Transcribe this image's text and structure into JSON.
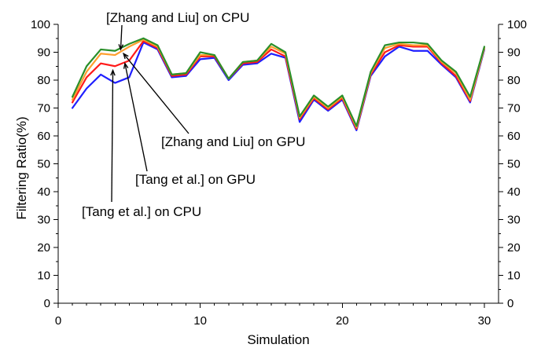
{
  "chart_data": {
    "type": "line",
    "xlabel": "Simulation",
    "ylabel": "Filtering Ratio(%)",
    "right_ylabel": "",
    "xlim": [
      0,
      31
    ],
    "ylim": [
      0,
      100
    ],
    "xticks": [
      0,
      10,
      20,
      30
    ],
    "yticks": [
      0,
      10,
      20,
      30,
      40,
      50,
      60,
      70,
      80,
      90,
      100
    ],
    "grid": false,
    "legend": "none",
    "x": [
      1,
      2,
      3,
      4,
      5,
      6,
      7,
      8,
      9,
      10,
      11,
      12,
      13,
      14,
      15,
      16,
      17,
      18,
      19,
      20,
      21,
      22,
      23,
      24,
      25,
      26,
      27,
      28,
      29,
      30
    ],
    "series": [
      {
        "name": "",
        "color": "#1f1fff",
        "values": [
          70,
          77,
          82,
          79,
          81,
          93.5,
          91,
          81,
          81.5,
          87.5,
          88,
          80,
          85.5,
          86,
          89.5,
          88,
          65,
          73,
          69,
          73,
          62,
          81.5,
          88.5,
          92,
          90.5,
          90.5,
          85.5,
          81,
          72,
          91
        ]
      },
      {
        "name": "",
        "color": "#ff1a1a",
        "values": [
          72,
          81,
          86,
          85,
          87,
          94,
          91.5,
          81.5,
          82,
          88.5,
          88.5,
          80.5,
          86,
          86.5,
          91,
          88.5,
          66,
          73.5,
          69.5,
          73.5,
          62.5,
          82,
          90,
          92.5,
          92,
          92,
          86,
          81.5,
          72.5,
          91.5
        ]
      },
      {
        "name": "",
        "color": "#ff9f2f",
        "values": [
          73,
          83,
          89.5,
          89,
          92,
          94.5,
          92,
          82,
          82.5,
          89,
          89,
          80.5,
          86.5,
          87,
          92,
          89.5,
          66.5,
          74,
          70,
          74,
          63,
          82.5,
          91.5,
          93,
          92.5,
          92.5,
          86.5,
          82.5,
          73,
          91.5
        ]
      },
      {
        "name": "",
        "color": "#2a8f2a",
        "values": [
          74,
          85,
          91,
          90.5,
          93,
          95,
          92.5,
          82,
          82.5,
          90,
          89,
          80.5,
          86.5,
          87,
          93,
          90,
          67,
          74.5,
          70.5,
          74.5,
          63.5,
          83,
          92.5,
          93.5,
          93.5,
          93,
          87,
          83,
          74,
          92
        ]
      }
    ],
    "annotations": [
      {
        "text": "[Zhang and Liu] on CPU",
        "x": 4.4,
        "y": 91
      },
      {
        "text": "[Zhang and Liu] on GPU",
        "x": 4.6,
        "y": 89.5
      },
      {
        "text": "[Tang et al.] on GPU",
        "x": 4.7,
        "y": 86
      },
      {
        "text": "[Tang et al.] on CPU",
        "x": 3.85,
        "y": 83.5
      }
    ]
  }
}
